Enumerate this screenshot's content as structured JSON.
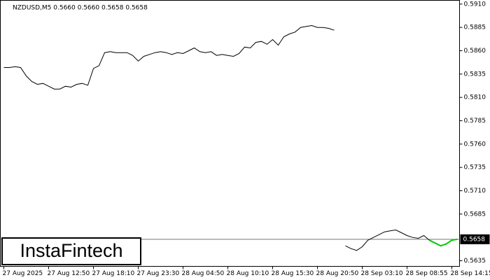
{
  "chart_data": {
    "type": "line",
    "title": "NZDUSD,M5  0.5660 0.5660 0.5658 0.5658",
    "watermark": "InstaFintech",
    "xlim": [
      -0.625,
      81.375
    ],
    "xticks": [
      {
        "value": 0,
        "label": "27 Aug 2025"
      },
      {
        "value": 8,
        "label": "27 Aug 12:50"
      },
      {
        "value": 16,
        "label": "27 Aug 18:10"
      },
      {
        "value": 24,
        "label": "27 Aug 23:30"
      },
      {
        "value": 32,
        "label": "28 Aug 04:50"
      },
      {
        "value": 40,
        "label": "28 Aug 10:10"
      },
      {
        "value": 48,
        "label": "28 Aug 15:30"
      },
      {
        "value": 56,
        "label": "28 Aug 20:50"
      },
      {
        "value": 64,
        "label": "28 Sep 03:10"
      },
      {
        "value": 72,
        "label": "28 Sep 08:55"
      },
      {
        "value": 80,
        "label": "28 Sep 14:15"
      }
    ],
    "ylim": [
      0.5629,
      0.5914
    ],
    "yticks": [
      {
        "value": 0.591,
        "label": "0.5910"
      },
      0.5885,
      {
        "value": 0.586,
        "label": "0.5860"
      },
      0.5835,
      {
        "value": 0.581,
        "label": "0.5810"
      },
      0.5785,
      {
        "value": 0.576,
        "label": "0.5760"
      },
      0.5735,
      {
        "value": 0.571,
        "label": "0.5710"
      },
      0.5685,
      0.5635
    ],
    "current_price": 0.5658,
    "highlight_range": [
      76,
      81
    ],
    "highlight_color": "#00cc00",
    "series": [
      {
        "color": "#000000",
        "values": [
          0.5842,
          0.5842,
          0.5843,
          0.5842,
          0.5833,
          0.5827,
          0.5824,
          0.5825,
          0.5822,
          0.5819,
          0.5819,
          0.5822,
          0.5821,
          0.5824,
          0.5825,
          0.5823,
          0.5841,
          0.5844,
          0.5858,
          0.5859,
          0.5858,
          0.5858,
          0.5858,
          0.5855,
          0.5849,
          0.5854,
          0.5856,
          0.5858,
          0.5859,
          0.5858,
          0.5856,
          0.5858,
          0.5857,
          0.586,
          0.5863,
          0.5859,
          0.5858,
          0.5859,
          0.5855,
          0.5856,
          0.5855,
          0.5854,
          0.5857,
          0.5864,
          0.5863,
          0.5869,
          0.587,
          0.5867,
          0.5872,
          0.5866,
          0.5875,
          0.5878,
          0.588,
          0.5885,
          0.5886,
          0.5887,
          0.5885,
          0.5885,
          0.5884,
          0.5882,
          null,
          0.5651,
          0.5648,
          0.5646,
          0.565,
          0.5657,
          0.566,
          0.5663,
          0.5666,
          0.5667,
          0.5668,
          0.5665,
          0.5662,
          0.566,
          0.5659,
          0.5662,
          0.5657,
          0.5654,
          0.5651,
          0.5653,
          0.5657,
          0.5658
        ]
      }
    ]
  }
}
